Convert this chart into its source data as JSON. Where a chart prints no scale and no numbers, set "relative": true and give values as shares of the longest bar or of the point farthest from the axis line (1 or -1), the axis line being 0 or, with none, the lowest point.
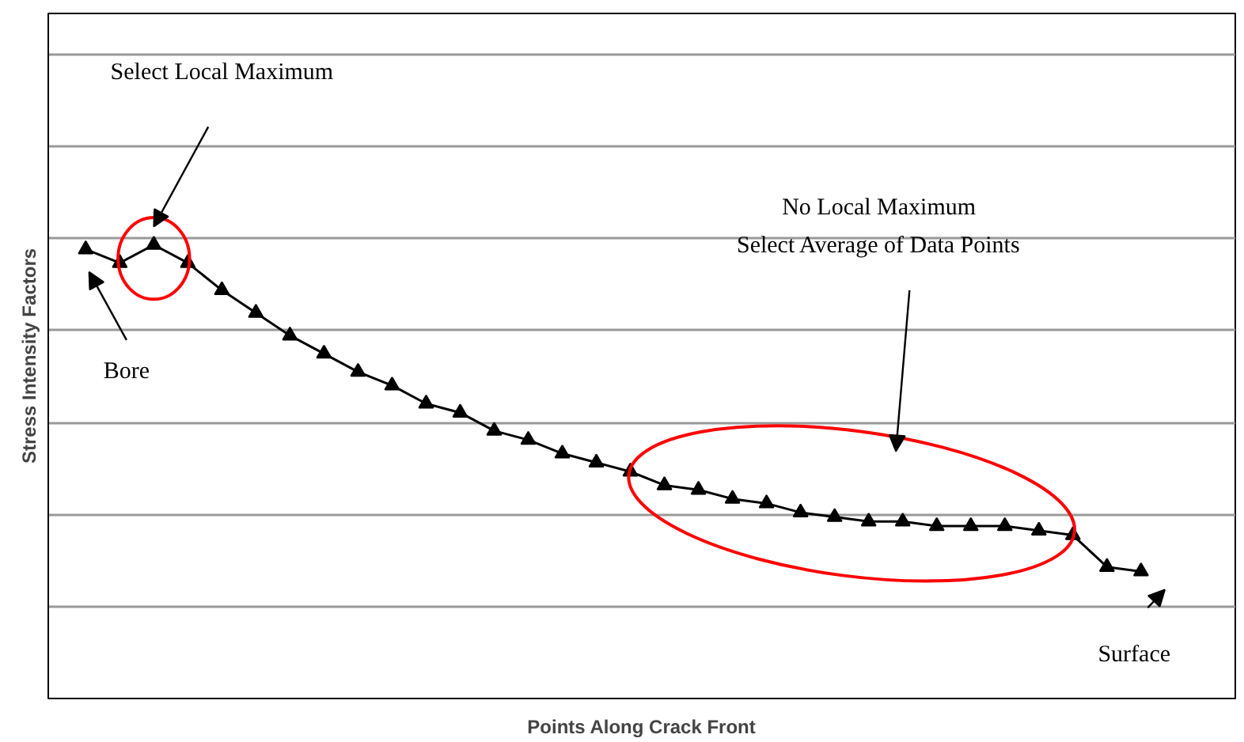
{
  "chart_data": {
    "type": "line",
    "relative": true,
    "xlabel": "Points Along Crack Front",
    "ylabel": "Stress Intensity Factors",
    "categories": [
      null,
      null,
      null,
      null,
      null,
      null,
      null,
      null,
      null,
      null,
      null,
      null,
      null,
      null,
      null,
      null,
      null,
      null,
      null,
      null,
      null,
      null,
      null,
      null,
      null,
      null,
      null,
      null,
      null,
      null,
      null,
      null
    ],
    "series": [
      {
        "color": "#000000",
        "values": [
          0.99,
          0.96,
          1.0,
          0.96,
          0.9,
          0.85,
          0.8,
          0.76,
          0.72,
          0.69,
          0.65,
          0.63,
          0.59,
          0.57,
          0.54,
          0.52,
          0.5,
          0.47,
          0.46,
          0.44,
          0.43,
          0.41,
          0.4,
          0.39,
          0.39,
          0.38,
          0.38,
          0.38,
          0.37,
          0.36,
          0.29,
          0.28
        ]
      }
    ],
    "marker": "triangle",
    "line_style": "solid",
    "grid": "y",
    "annotations": [
      "Select Local Maximum",
      "Bore",
      "No Local Maximum\nSelect Average of Data Points",
      "Surface"
    ]
  }
}
